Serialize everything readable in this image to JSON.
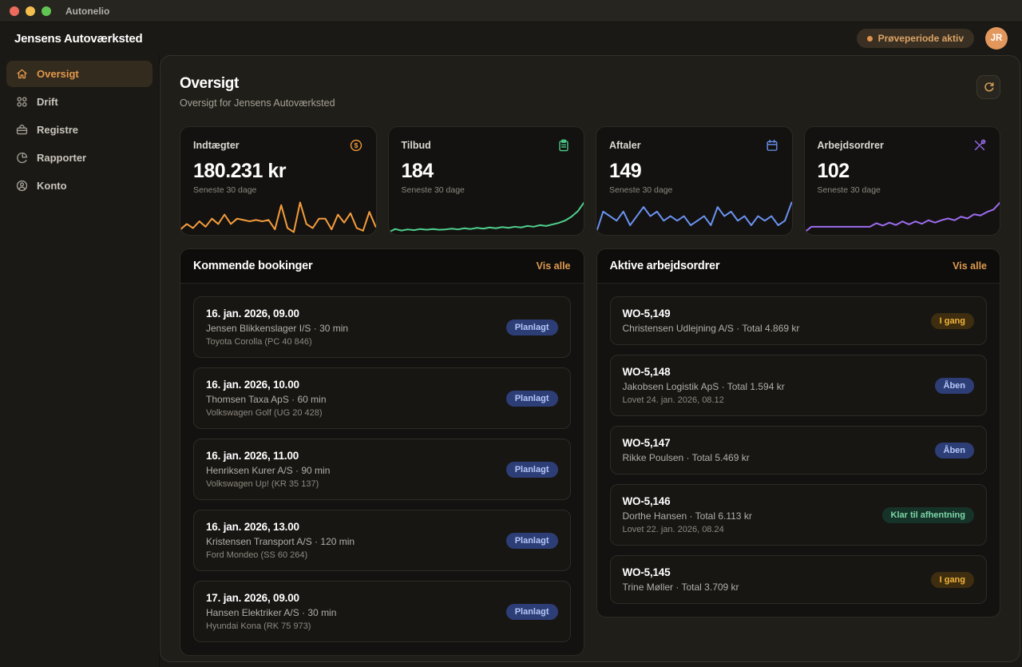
{
  "titlebar": {
    "app_name": "Autonelio"
  },
  "topbar": {
    "workshop_name": "Jensens Autoværksted",
    "trial_badge_label": "Prøveperiode aktiv",
    "avatar_initials": "JR"
  },
  "sidebar": {
    "items": [
      {
        "label": "Oversigt",
        "icon": "home-icon",
        "active": true
      },
      {
        "label": "Drift",
        "icon": "grid-icon",
        "active": false
      },
      {
        "label": "Registre",
        "icon": "toolbox-icon",
        "active": false
      },
      {
        "label": "Rapporter",
        "icon": "pie-chart-icon",
        "active": false
      },
      {
        "label": "Konto",
        "icon": "user-circle-icon",
        "active": false
      }
    ]
  },
  "page": {
    "title": "Oversigt",
    "subtitle": "Oversigt for Jensens Autoværksted"
  },
  "stats": {
    "cards": [
      {
        "label": "Indtægter",
        "value": "180.231 kr",
        "caption": "Seneste 30 dage",
        "icon": "coins-icon",
        "color": "#f59d3d",
        "sparkline": [
          2,
          4,
          2.5,
          5,
          3,
          6,
          4,
          7.5,
          4,
          6,
          5.5,
          5,
          5.5,
          5,
          5.5,
          2,
          11,
          2.5,
          1,
          12,
          4,
          2.5,
          6,
          6,
          2,
          7.5,
          4.5,
          8,
          2.5,
          1.5,
          8.5,
          3
        ]
      },
      {
        "label": "Tilbud",
        "value": "184",
        "caption": "Seneste 30 dage",
        "icon": "clipboard-icon",
        "color": "#4fcf8d",
        "sparkline": [
          2.8,
          3.6,
          3.2,
          3.5,
          3.3,
          3.6,
          3.4,
          3.6,
          3.4,
          3.5,
          3.7,
          3.5,
          3.8,
          3.6,
          3.9,
          3.7,
          4,
          3.8,
          4.1,
          3.9,
          4.2,
          4,
          4.4,
          4.2,
          4.6,
          4.4,
          4.8,
          5.2,
          5.8,
          6.8,
          8.2,
          10.5
        ]
      },
      {
        "label": "Aftaler",
        "value": "149",
        "caption": "Seneste 30 dage",
        "icon": "calendar-icon",
        "color": "#6b93f2",
        "sparkline": [
          1,
          5.5,
          4.5,
          3.5,
          5.5,
          2.5,
          4.5,
          6.5,
          4.5,
          5.5,
          3.5,
          4.5,
          3.5,
          4.5,
          2.5,
          3.5,
          4.5,
          2.5,
          6.5,
          4.5,
          5.5,
          3.5,
          4.5,
          2.5,
          4.5,
          3.5,
          4.5,
          2.5,
          3.5,
          7.5
        ]
      },
      {
        "label": "Arbejdsordrer",
        "value": "102",
        "caption": "Seneste 30 dage",
        "icon": "tools-icon",
        "color": "#9d6cf0",
        "sparkline": [
          0.3,
          1.2,
          1.2,
          1.2,
          1.2,
          1.2,
          1.2,
          1.2,
          1.2,
          1.2,
          1.2,
          1.8,
          1.4,
          1.9,
          1.5,
          2.1,
          1.6,
          2.1,
          1.7,
          2.3,
          1.9,
          2.3,
          2.6,
          2.3,
          2.9,
          2.6,
          3.3,
          3.1,
          3.7,
          4.1,
          5.3
        ]
      }
    ]
  },
  "bookings": {
    "title": "Kommende bookinger",
    "view_all": "Vis alle",
    "items": [
      {
        "datetime": "16. jan. 2026, 09.00",
        "detail": "Jensen Blikkenslager I/S · 30 min",
        "vehicle": "Toyota Corolla (PC 40 846)",
        "badge": "Planlagt",
        "badge_type": "blue"
      },
      {
        "datetime": "16. jan. 2026, 10.00",
        "detail": "Thomsen Taxa ApS · 60 min",
        "vehicle": "Volkswagen Golf (UG 20 428)",
        "badge": "Planlagt",
        "badge_type": "blue"
      },
      {
        "datetime": "16. jan. 2026, 11.00",
        "detail": "Henriksen Kurer A/S · 90 min",
        "vehicle": "Volkswagen Up! (KR 35 137)",
        "badge": "Planlagt",
        "badge_type": "blue"
      },
      {
        "datetime": "16. jan. 2026, 13.00",
        "detail": "Kristensen Transport A/S · 120 min",
        "vehicle": "Ford Mondeo (SS 60 264)",
        "badge": "Planlagt",
        "badge_type": "blue"
      },
      {
        "datetime": "17. jan. 2026, 09.00",
        "detail": "Hansen Elektriker A/S · 30 min",
        "vehicle": "Hyundai Kona (RK 75 973)",
        "badge": "Planlagt",
        "badge_type": "blue"
      }
    ]
  },
  "workorders": {
    "title": "Aktive arbejdsordrer",
    "view_all": "Vis alle",
    "items": [
      {
        "id": "WO-5,149",
        "detail": "Christensen Udlejning A/S · Total 4.869 kr",
        "promised": "",
        "badge": "I gang",
        "badge_type": "amber"
      },
      {
        "id": "WO-5,148",
        "detail": "Jakobsen Logistik ApS · Total 1.594 kr",
        "promised": "Lovet 24. jan. 2026, 08.12",
        "badge": "Åben",
        "badge_type": "blue"
      },
      {
        "id": "WO-5,147",
        "detail": "Rikke Poulsen · Total 5.469 kr",
        "promised": "",
        "badge": "Åben",
        "badge_type": "blue"
      },
      {
        "id": "WO-5,146",
        "detail": "Dorthe Hansen · Total 6.113 kr",
        "promised": "Lovet 22. jan. 2026, 08.24",
        "badge": "Klar til afhentning",
        "badge_type": "green"
      },
      {
        "id": "WO-5,145",
        "detail": "Trine Møller · Total 3.709 kr",
        "promised": "",
        "badge": "I gang",
        "badge_type": "amber"
      }
    ]
  },
  "colors": {
    "accent_orange": "#e1984b",
    "badge_blue_bg": "#2d3d76",
    "badge_amber_bg": "#3e2e0f",
    "badge_green_bg": "#163329",
    "trial_dot": "#e0914a",
    "avatar_bg": "#e2985c"
  }
}
